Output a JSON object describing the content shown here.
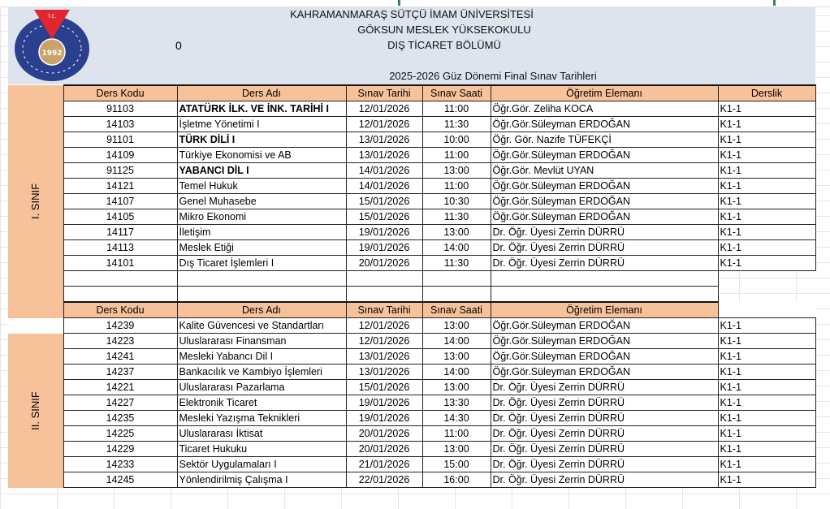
{
  "header": {
    "university": "KAHRAMANMARAŞ SÜTÇÜ İMAM ÜNİVERSİTESİ",
    "school": "GÖKSUN MESLEK YÜKSEKOKULU",
    "department": "DIŞ TİCARET BÖLÜMÜ",
    "cell_value": "0",
    "title": "2025-2026 Güz Dönemi Final Sınav Tarihleri",
    "logo_text": "T.C. KAHRAMANMARAŞ SÜTÇÜ İMAM ÜNİVERSİTESİ 1992"
  },
  "columns": [
    "Ders Kodu",
    "Ders Adı",
    "Sınav Tarihi",
    "Sınav Saati",
    "Öğretim Elemanı",
    "Derslik"
  ],
  "sections": [
    {
      "label": "I. SINIF",
      "rows": [
        {
          "code": "91103",
          "name": "ATATÜRK İLK. VE İNK. TARİHİ I",
          "bold": true,
          "date": "12/01/2026",
          "time": "11:00",
          "teacher": "Öğr.Gör. Zeliha KOCA",
          "room": "K1-1"
        },
        {
          "code": "14103",
          "name": "İşletme Yönetimi I",
          "date": "12/01/2026",
          "time": "11:30",
          "teacher": "Öğr.Gör.Süleyman ERDOĞAN",
          "room": "K1-1"
        },
        {
          "code": "91101",
          "name": "TÜRK DİLİ I",
          "bold": true,
          "date": "13/01/2026",
          "time": "10:00",
          "teacher": "Öğr. Gör. Nazife TÜFEKÇİ",
          "room": "K1-1"
        },
        {
          "code": "14109",
          "name": "Türkiye Ekonomisi ve AB",
          "date": "13/01/2026",
          "time": "11:00",
          "teacher": "Öğr.Gör.Süleyman ERDOĞAN",
          "room": "K1-1"
        },
        {
          "code": "91125",
          "name": "YABANCI DİL I",
          "bold": true,
          "date": "14/01/2026",
          "time": "13:00",
          "teacher": "Öğr.Gör. Mevlüt UYAN",
          "room": "K1-1"
        },
        {
          "code": "14121",
          "name": "Temel Hukuk",
          "date": "14/01/2026",
          "time": "11:00",
          "teacher": "Öğr.Gör.Süleyman ERDOĞAN",
          "room": "K1-1"
        },
        {
          "code": "14107",
          "name": "Genel Muhasebe",
          "date": "15/01/2026",
          "time": "10:30",
          "teacher": "Öğr.Gör.Süleyman ERDOĞAN",
          "room": "K1-1"
        },
        {
          "code": "14105",
          "name": "Mikro Ekonomi",
          "date": "15/01/2026",
          "time": "11:30",
          "teacher": "Öğr.Gör.Süleyman ERDOĞAN",
          "room": "K1-1"
        },
        {
          "code": "14117",
          "name": "İletişim",
          "date": "19/01/2026",
          "time": "13:00",
          "teacher": "Dr. Öğr. Üyesi Zerrin DÜRRÜ",
          "room": "K1-1"
        },
        {
          "code": "14113",
          "name": "Meslek Etiği",
          "date": "19/01/2026",
          "time": "14:00",
          "teacher": "Dr. Öğr. Üyesi Zerrin DÜRRÜ",
          "room": "K1-1"
        },
        {
          "code": "14101",
          "name": "Dış Ticaret İşlemleri I",
          "date": "20/01/2026",
          "time": "11:30",
          "teacher": "Dr. Öğr. Üyesi Zerrin DÜRRÜ",
          "room": "K1-1"
        }
      ]
    },
    {
      "label": "II. SINIF",
      "rows": [
        {
          "code": "14239",
          "name": "Kalite Güvencesi ve Standartları",
          "date": "12/01/2026",
          "time": "13:00",
          "teacher": "Öğr.Gör.Süleyman ERDOĞAN",
          "room": "K1-1"
        },
        {
          "code": "14223",
          "name": "Uluslararası Finansman",
          "date": "12/01/2026",
          "time": "14:00",
          "teacher": "Öğr.Gör.Süleyman ERDOĞAN",
          "room": "K1-1"
        },
        {
          "code": "14241",
          "name": "Mesleki Yabancı Dil I",
          "date": "13/01/2026",
          "time": "13:00",
          "teacher": "Öğr.Gör.Süleyman ERDOĞAN",
          "room": "K1-1"
        },
        {
          "code": "14237",
          "name": "Bankacılık ve Kambiyo İşlemleri",
          "date": "13/01/2026",
          "time": "14:00",
          "teacher": "Öğr.Gör.Süleyman ERDOĞAN",
          "room": "K1-1"
        },
        {
          "code": "14221",
          "name": "Uluslararası Pazarlama",
          "date": "15/01/2026",
          "time": "13:00",
          "teacher": "Dr. Öğr. Üyesi Zerrin DÜRRÜ",
          "room": "K1-1"
        },
        {
          "code": "14227",
          "name": "Elektronik Ticaret",
          "date": "19/01/2026",
          "time": "13:30",
          "teacher": "Dr. Öğr. Üyesi Zerrin DÜRRÜ",
          "room": "K1-1"
        },
        {
          "code": "14235",
          "name": "Mesleki Yazışma Teknikleri",
          "date": "19/01/2026",
          "time": "14:30",
          "teacher": "Dr. Öğr. Üyesi Zerrin DÜRRÜ",
          "room": "K1-1"
        },
        {
          "code": "14225",
          "name": "Uluslararası İktisat",
          "date": "20/01/2026",
          "time": "11:00",
          "teacher": "Dr. Öğr. Üyesi Zerrin DÜRRÜ",
          "room": "K1-1"
        },
        {
          "code": "14229",
          "name": "Ticaret Hukuku",
          "date": "20/01/2026",
          "time": "13:00",
          "teacher": "Dr. Öğr. Üyesi Zerrin DÜRRÜ",
          "room": "K1-1"
        },
        {
          "code": "14233",
          "name": "Sektör Uygulamaları I",
          "date": "21/01/2026",
          "time": "15:00",
          "teacher": "Dr. Öğr. Üyesi Zerrin DÜRRÜ",
          "room": "K1-1"
        },
        {
          "code": "14245",
          "name": "Yönlendirilmiş Çalışma I",
          "date": "22/01/2026",
          "time": "16:00",
          "teacher": "Dr. Öğr. Üyesi Zerrin DÜRRÜ",
          "room": "K1-1"
        }
      ]
    }
  ],
  "colors": {
    "header_bg": "#dde4ed",
    "accent": "#f7c29a",
    "logo_blue": "#2b3f8f",
    "logo_red": "#e0262e",
    "logo_gold": "#c9a36a"
  }
}
